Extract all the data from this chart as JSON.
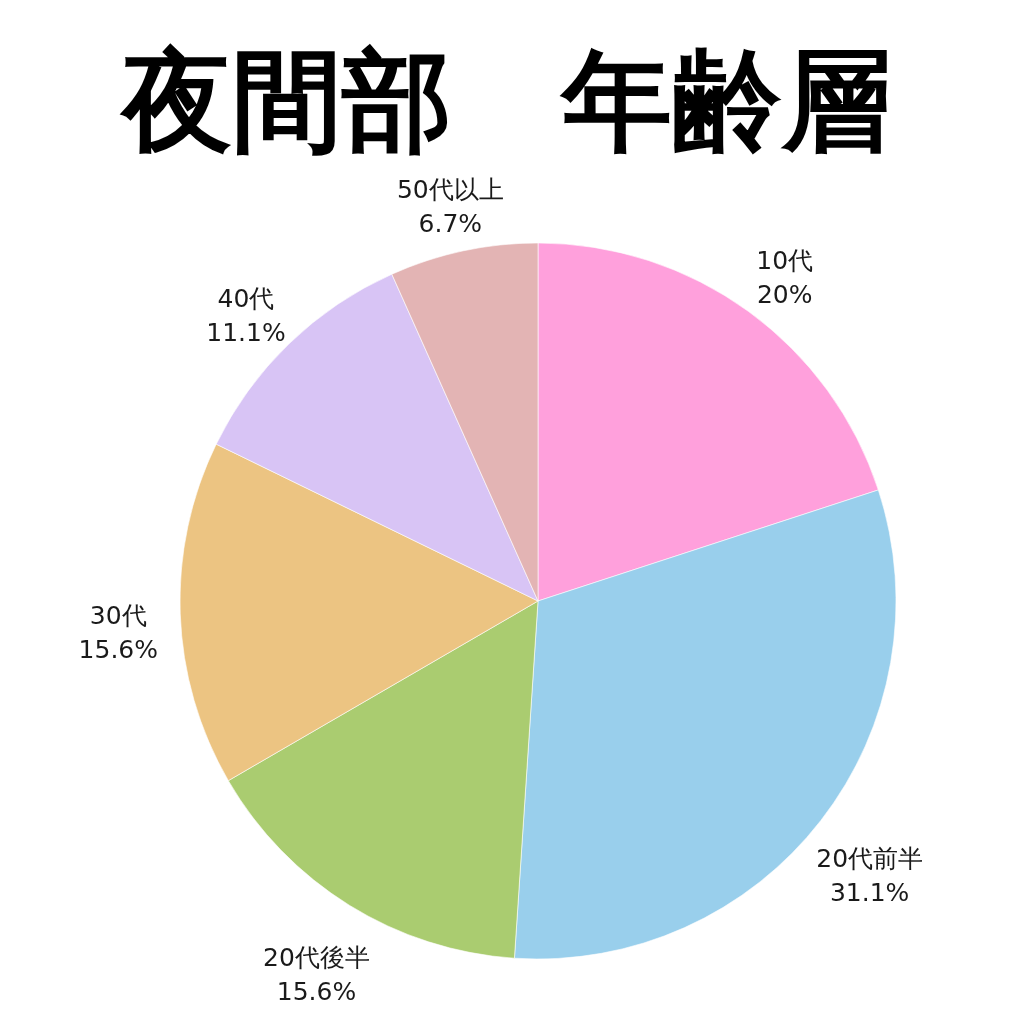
{
  "chart_data": {
    "type": "pie",
    "title": "夜間部　年齢層",
    "categories": [
      "10代",
      "20代前半",
      "20代後半",
      "30代",
      "40代",
      "50代以上"
    ],
    "values": [
      20,
      31.1,
      15.6,
      15.6,
      11.1,
      6.7
    ],
    "value_labels": [
      "20%",
      "31.1%",
      "15.6%",
      "15.6%",
      "11.1%",
      "6.7%"
    ],
    "colors": [
      "#ffa0dc",
      "#99cfec",
      "#aacc70",
      "#ecc482",
      "#d8c4f5",
      "#e3b4b4"
    ]
  }
}
